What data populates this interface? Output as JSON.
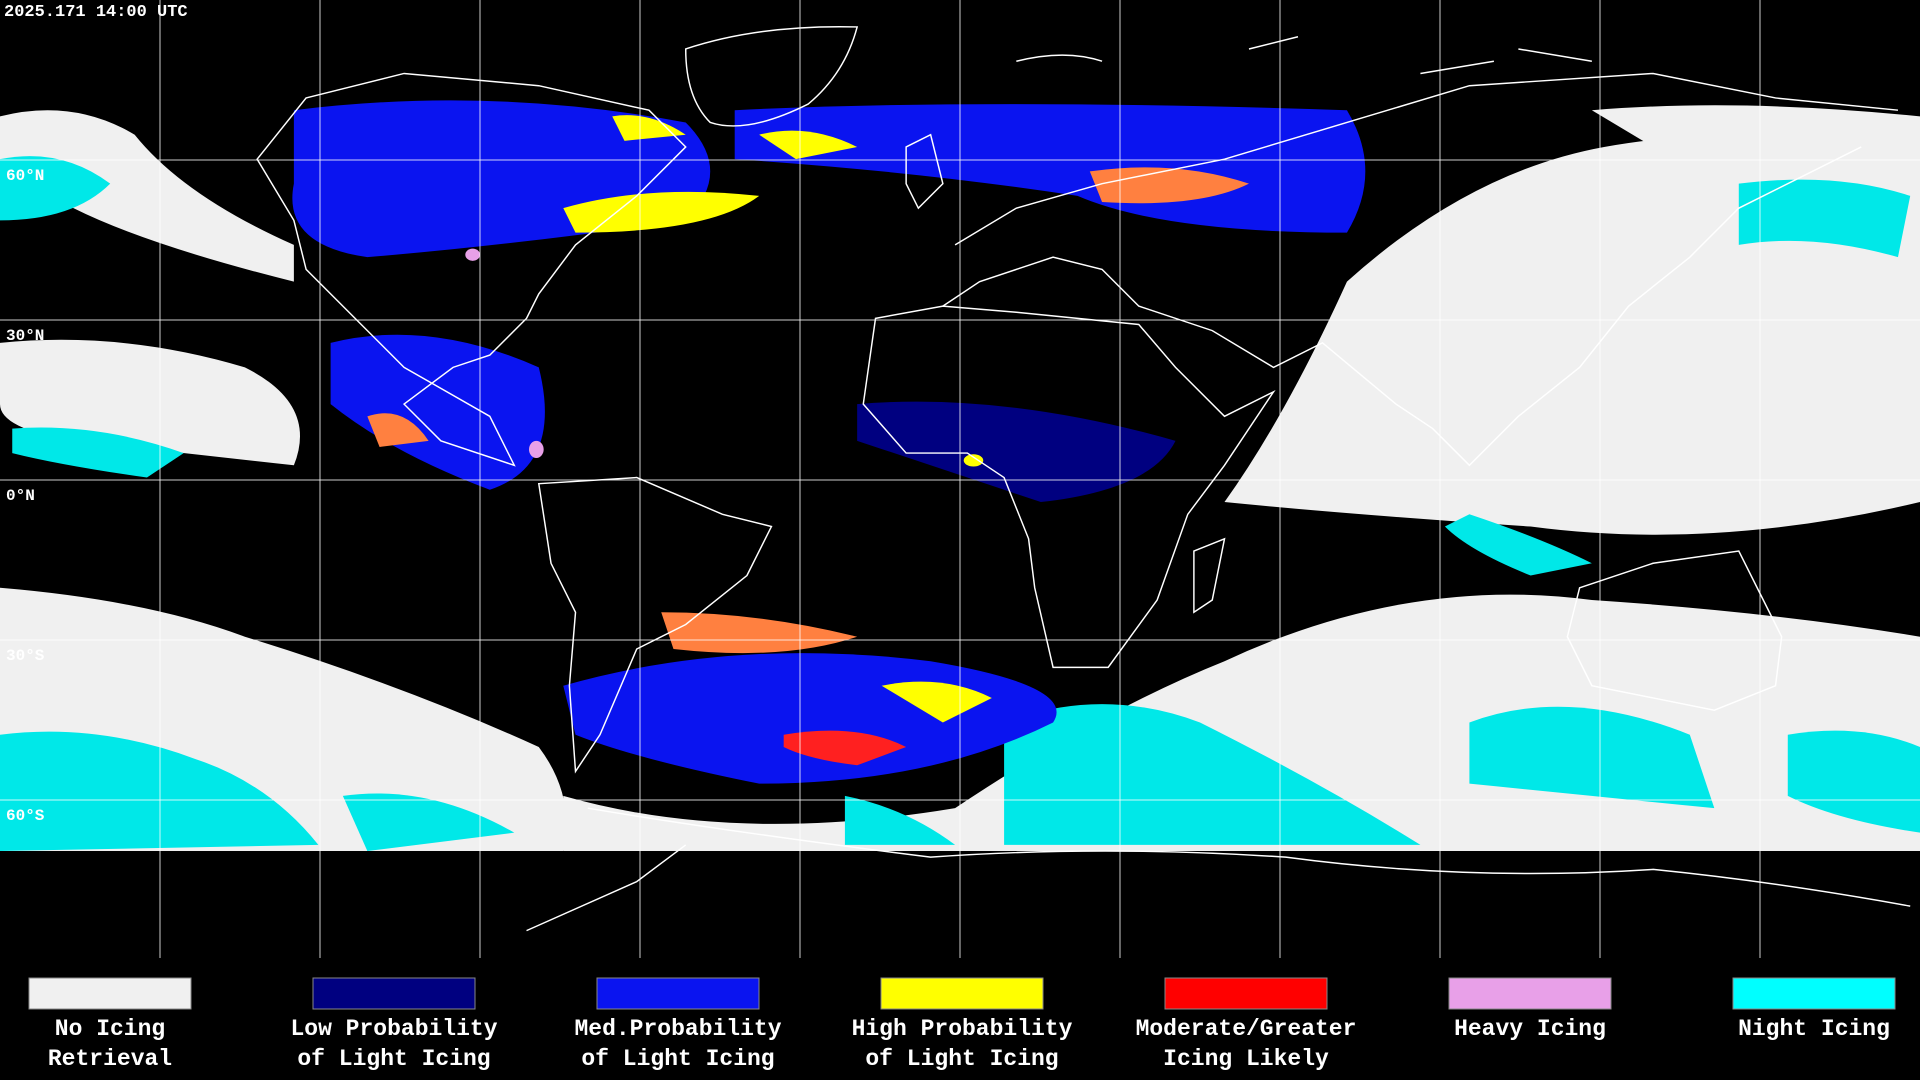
{
  "header": {
    "timestamp": "2025.171 14:00 UTC"
  },
  "map": {
    "lat_labels": [
      "60°N",
      "30°N",
      "0°N",
      "30°S",
      "60°S"
    ]
  },
  "legend": {
    "items": [
      {
        "label": [
          "No Icing",
          "Retrieval"
        ],
        "color": "#f0f0f0"
      },
      {
        "label": [
          "Low Probability",
          "of Light Icing"
        ],
        "color": "#000080"
      },
      {
        "label": [
          "Med.Probability",
          "of Light Icing"
        ],
        "color": "#0a14f0"
      },
      {
        "label": [
          "High Probability",
          "of Light Icing"
        ],
        "color": "#ffff00"
      },
      {
        "label": [
          "Moderate/Greater",
          "Icing Likely"
        ],
        "color": "#ff0000"
      },
      {
        "label": [
          "Heavy Icing"
        ],
        "color": "#e8a0e8"
      },
      {
        "label": [
          "Night Icing"
        ],
        "color": "#00ffff"
      }
    ]
  }
}
